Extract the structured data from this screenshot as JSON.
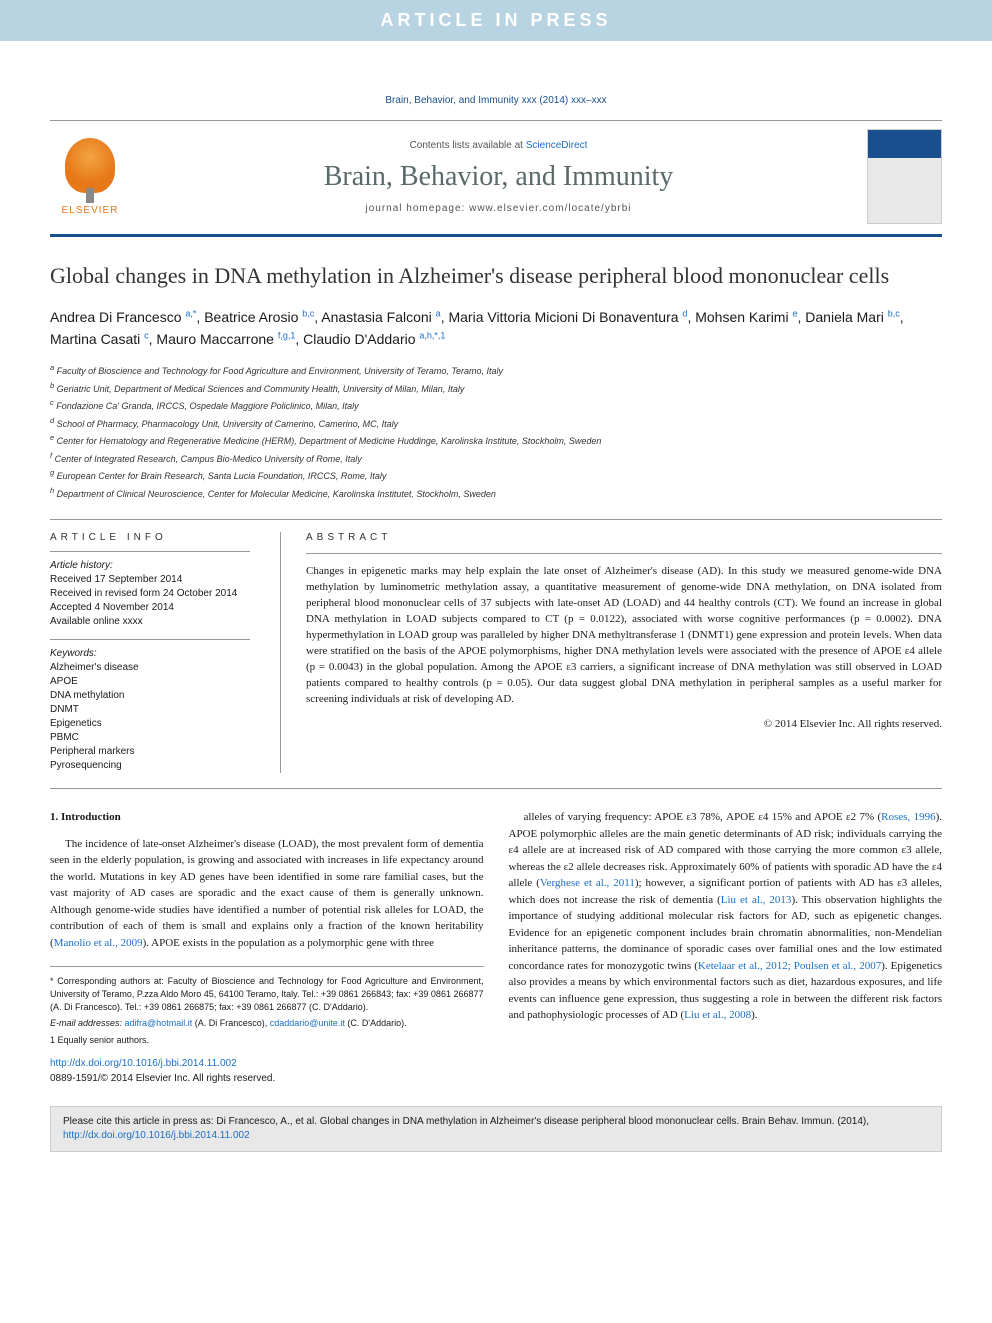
{
  "banner": "ARTICLE IN PRESS",
  "citation_top": "Brain, Behavior, and Immunity xxx (2014) xxx–xxx",
  "header": {
    "contents_prefix": "Contents lists available at ",
    "contents_link": "ScienceDirect",
    "journal": "Brain, Behavior, and Immunity",
    "homepage_prefix": "journal homepage: ",
    "homepage_url": "www.elsevier.com/locate/ybrbi",
    "publisher": "ELSEVIER"
  },
  "title": "Global changes in DNA methylation in Alzheimer's disease peripheral blood mononuclear cells",
  "authors_html": "Andrea Di Francesco <sup>a,*</sup>, Beatrice Arosio <sup>b,c</sup>, Anastasia Falconi <sup>a</sup>, Maria Vittoria Micioni Di Bonaventura <sup>d</sup>, Mohsen Karimi <sup>e</sup>, Daniela Mari <sup>b,c</sup>, Martina Casati <sup>c</sup>, Mauro Maccarrone <sup>f,g,1</sup>, Claudio D'Addario <sup>a,h,*,1</sup>",
  "affiliations": [
    "a Faculty of Bioscience and Technology for Food Agriculture and Environment, University of Teramo, Teramo, Italy",
    "b Geriatric Unit, Department of Medical Sciences and Community Health, University of Milan, Milan, Italy",
    "c Fondazione Ca' Granda, IRCCS, Ospedale Maggiore Policlinico, Milan, Italy",
    "d School of Pharmacy, Pharmacology Unit, University of Camerino, Camerino, MC, Italy",
    "e Center for Hematology and Regenerative Medicine (HERM), Department of Medicine Huddinge, Karolinska Institute, Stockholm, Sweden",
    "f Center of Integrated Research, Campus Bio-Medico University of Rome, Italy",
    "g European Center for Brain Research, Santa Lucia Foundation, IRCCS, Rome, Italy",
    "h Department of Clinical Neuroscience, Center for Molecular Medicine, Karolinska Institutet, Stockholm, Sweden"
  ],
  "info": {
    "heading": "ARTICLE INFO",
    "history_label": "Article history:",
    "received": "Received 17 September 2014",
    "revised": "Received in revised form 24 October 2014",
    "accepted": "Accepted 4 November 2014",
    "online": "Available online xxxx",
    "keywords_label": "Keywords:",
    "keywords": [
      "Alzheimer's disease",
      "APOE",
      "DNA methylation",
      "DNMT",
      "Epigenetics",
      "PBMC",
      "Peripheral markers",
      "Pyrosequencing"
    ]
  },
  "abstract": {
    "heading": "ABSTRACT",
    "text": "Changes in epigenetic marks may help explain the late onset of Alzheimer's disease (AD). In this study we measured genome-wide DNA methylation by luminometric methylation assay, a quantitative measurement of genome-wide DNA methylation, on DNA isolated from peripheral blood mononuclear cells of 37 subjects with late-onset AD (LOAD) and 44 healthy controls (CT). We found an increase in global DNA methylation in LOAD subjects compared to CT (p = 0.0122), associated with worse cognitive performances (p = 0.0002). DNA hypermethylation in LOAD group was paralleled by higher DNA methyltransferase 1 (DNMT1) gene expression and protein levels. When data were stratified on the basis of the APOE polymorphisms, higher DNA methylation levels were associated with the presence of APOE ε4 allele (p = 0.0043) in the global population. Among the APOE ε3 carriers, a significant increase of DNA methylation was still observed in LOAD patients compared to healthy controls (p = 0.05). Our data suggest global DNA methylation in peripheral samples as a useful marker for screening individuals at risk of developing AD.",
    "copyright": "© 2014 Elsevier Inc. All rights reserved."
  },
  "intro": {
    "heading": "1. Introduction",
    "col1": "The incidence of late-onset Alzheimer's disease (LOAD), the most prevalent form of dementia seen in the elderly population, is growing and associated with increases in life expectancy around the world. Mutations in key AD genes have been identified in some rare familial cases, but the vast majority of AD cases are sporadic and the exact cause of them is generally unknown. Although genome-wide studies have identified a number of potential risk alleles for LOAD, the contribution of each of them is small and explains only a fraction of the known heritability (Manolio et al., 2009). APOE exists in the population as a polymorphic gene with three",
    "col2": "alleles of varying frequency: APOE ε3 78%, APOE ε4 15% and APOE ε2 7% (Roses, 1996). APOE polymorphic alleles are the main genetic determinants of AD risk; individuals carrying the ε4 allele are at increased risk of AD compared with those carrying the more common ε3 allele, whereas the ε2 allele decreases risk. Approximately 60% of patients with sporadic AD have the ε4 allele (Verghese et al., 2011); however, a significant portion of patients with AD has ε3 alleles, which does not increase the risk of dementia (Liu et al., 2013). This observation highlights the importance of studying additional molecular risk factors for AD, such as epigenetic changes. Evidence for an epigenetic component includes brain chromatin abnormalities, non-Mendelian inheritance patterns, the dominance of sporadic cases over familial ones and the low estimated concordance rates for monozygotic twins (Ketelaar et al., 2012; Poulsen et al., 2007). Epigenetics also provides a means by which environmental factors such as diet, hazardous exposures, and life events can influence gene expression, thus suggesting a role in between the different risk factors and pathophysiologic processes of AD (Liu et al., 2008)."
  },
  "footnotes": {
    "corr": "* Corresponding authors at: Faculty of Bioscience and Technology for Food Agriculture and Environment, University of Teramo, P.zza Aldo Moro 45, 64100 Teramo, Italy. Tel.: +39 0861 266843; fax: +39 0861 266877 (A. Di Francesco). Tel.: +39 0861 266875; fax: +39 0861 266877 (C. D'Addario).",
    "email_label": "E-mail addresses: ",
    "email1": "adifra@hotmail.it",
    "email1_name": " (A. Di Francesco), ",
    "email2": "cdaddario@unite.it",
    "email2_name": " (C. D'Addario).",
    "equal": "1   Equally senior authors."
  },
  "doi": {
    "url": "http://dx.doi.org/10.1016/j.bbi.2014.11.002",
    "issn": "0889-1591/© 2014 Elsevier Inc. All rights reserved."
  },
  "citebox": {
    "text": "Please cite this article in press as: Di Francesco, A., et al. Global changes in DNA methylation in Alzheimer's disease peripheral blood mononuclear cells. Brain Behav. Immun. (2014), ",
    "link": "http://dx.doi.org/10.1016/j.bbi.2014.11.002"
  }
}
